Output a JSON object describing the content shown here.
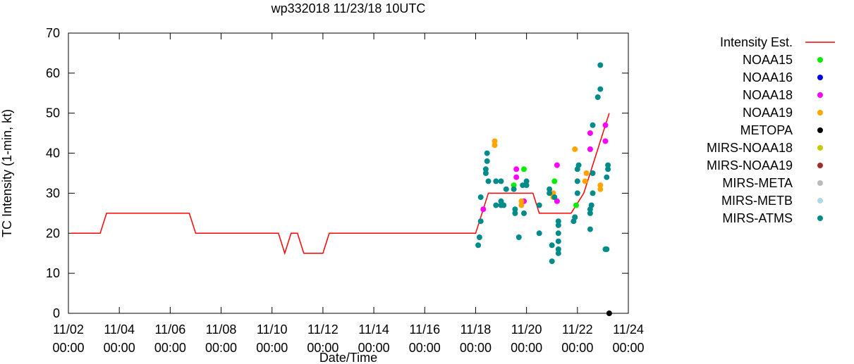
{
  "chart_data": {
    "type": "scatter",
    "title": "wp332018 11/23/18 10UTC",
    "xlabel": "Date/Time",
    "ylabel": "TC Intensity (1-min, kt)",
    "xlim": [
      0,
      22
    ],
    "ylim": [
      0,
      70
    ],
    "x_units": "days since 11/02 00:00",
    "x_ticks": [
      {
        "value": 0,
        "line1": "11/02",
        "line2": "00:00"
      },
      {
        "value": 2,
        "line1": "11/04",
        "line2": "00:00"
      },
      {
        "value": 4,
        "line1": "11/06",
        "line2": "00:00"
      },
      {
        "value": 6,
        "line1": "11/08",
        "line2": "00:00"
      },
      {
        "value": 8,
        "line1": "11/10",
        "line2": "00:00"
      },
      {
        "value": 10,
        "line1": "11/12",
        "line2": "00:00"
      },
      {
        "value": 12,
        "line1": "11/14",
        "line2": "00:00"
      },
      {
        "value": 14,
        "line1": "11/16",
        "line2": "00:00"
      },
      {
        "value": 16,
        "line1": "11/18",
        "line2": "00:00"
      },
      {
        "value": 18,
        "line1": "11/20",
        "line2": "00:00"
      },
      {
        "value": 20,
        "line1": "11/22",
        "line2": "00:00"
      },
      {
        "value": 22,
        "line1": "11/24",
        "line2": "00:00"
      }
    ],
    "y_ticks": [
      0,
      10,
      20,
      30,
      40,
      50,
      60,
      70
    ],
    "legend_position": "right",
    "intensity_line": {
      "name": "Intensity Est.",
      "color": "#ff0000",
      "points": [
        [
          0.1,
          20
        ],
        [
          1.25,
          20
        ],
        [
          1.5,
          25
        ],
        [
          4.75,
          25
        ],
        [
          5.0,
          20
        ],
        [
          8.25,
          20
        ],
        [
          8.5,
          15
        ],
        [
          8.75,
          20
        ],
        [
          9.0,
          20
        ],
        [
          9.25,
          15
        ],
        [
          10.0,
          15
        ],
        [
          10.25,
          20
        ],
        [
          16.0,
          20
        ],
        [
          16.5,
          30
        ],
        [
          17.5,
          30
        ],
        [
          18.25,
          30
        ],
        [
          18.5,
          25
        ],
        [
          19.75,
          25
        ],
        [
          20.25,
          30
        ],
        [
          20.5,
          35
        ],
        [
          21.25,
          50
        ]
      ]
    },
    "series": [
      {
        "name": "NOAA15",
        "color": "#00ee00",
        "points": [
          [
            17.5,
            32
          ],
          [
            17.9,
            36
          ],
          [
            19.1,
            33
          ],
          [
            19.95,
            27
          ]
        ]
      },
      {
        "name": "NOAA16",
        "color": "#0000ee",
        "points": []
      },
      {
        "name": "NOAA18",
        "color": "#ff00ff",
        "points": [
          [
            16.3,
            26
          ],
          [
            17.6,
            36
          ],
          [
            17.6,
            34
          ],
          [
            17.9,
            28
          ],
          [
            19.2,
            28
          ],
          [
            19.2,
            37
          ],
          [
            20.5,
            41
          ],
          [
            20.5,
            45
          ],
          [
            21.1,
            47
          ],
          [
            21.1,
            43
          ]
        ]
      },
      {
        "name": "NOAA19",
        "color": "#ffa500",
        "points": [
          [
            16.75,
            43
          ],
          [
            16.75,
            42
          ],
          [
            17.8,
            28
          ],
          [
            17.8,
            27
          ],
          [
            19.05,
            30
          ],
          [
            19.05,
            29
          ],
          [
            19.9,
            41
          ],
          [
            19.9,
            24
          ],
          [
            20.3,
            33
          ],
          [
            20.35,
            35
          ],
          [
            20.9,
            32
          ],
          [
            20.9,
            31
          ]
        ]
      },
      {
        "name": "METOPA",
        "color": "#000000",
        "points": [
          [
            21.25,
            0
          ]
        ]
      },
      {
        "name": "MIRS-NOAA18",
        "color": "#c8c800",
        "points": []
      },
      {
        "name": "MIRS-NOAA19",
        "color": "#a52a2a",
        "points": []
      },
      {
        "name": "MIRS-META",
        "color": "#bbbbbb",
        "points": []
      },
      {
        "name": "MIRS-METB",
        "color": "#add8e6",
        "points": []
      },
      {
        "name": "MIRS-ATMS",
        "color": "#008b8b",
        "points": [
          [
            16.1,
            17
          ],
          [
            16.15,
            19
          ],
          [
            16.2,
            23
          ],
          [
            16.2,
            29
          ],
          [
            16.4,
            36
          ],
          [
            16.4,
            35
          ],
          [
            16.45,
            40
          ],
          [
            16.45,
            38
          ],
          [
            16.5,
            33
          ],
          [
            16.8,
            27
          ],
          [
            16.8,
            33
          ],
          [
            17.0,
            27
          ],
          [
            17.0,
            28
          ],
          [
            17.0,
            33
          ],
          [
            17.1,
            27
          ],
          [
            17.2,
            31
          ],
          [
            17.5,
            31
          ],
          [
            17.55,
            25
          ],
          [
            17.55,
            26
          ],
          [
            17.7,
            19
          ],
          [
            17.85,
            32
          ],
          [
            17.9,
            25
          ],
          [
            18.0,
            32
          ],
          [
            18.0,
            33
          ],
          [
            18.5,
            27
          ],
          [
            18.5,
            20
          ],
          [
            18.9,
            31
          ],
          [
            18.9,
            30
          ],
          [
            19.0,
            13
          ],
          [
            19.0,
            17
          ],
          [
            19.1,
            29
          ],
          [
            19.25,
            23
          ],
          [
            19.25,
            22
          ],
          [
            19.25,
            20
          ],
          [
            19.25,
            18
          ],
          [
            19.25,
            16
          ],
          [
            19.25,
            15
          ],
          [
            19.85,
            23
          ],
          [
            19.9,
            24
          ],
          [
            20.0,
            30
          ],
          [
            20.0,
            33
          ],
          [
            20.0,
            36
          ],
          [
            20.05,
            37
          ],
          [
            20.5,
            21
          ],
          [
            20.5,
            25
          ],
          [
            20.5,
            26
          ],
          [
            20.55,
            27
          ],
          [
            20.6,
            30
          ],
          [
            20.6,
            35
          ],
          [
            20.6,
            47
          ],
          [
            20.8,
            54
          ],
          [
            20.9,
            56
          ],
          [
            20.9,
            62
          ],
          [
            21.1,
            16
          ],
          [
            21.15,
            16
          ],
          [
            21.15,
            34
          ],
          [
            21.2,
            36
          ],
          [
            21.2,
            37
          ]
        ]
      }
    ]
  }
}
